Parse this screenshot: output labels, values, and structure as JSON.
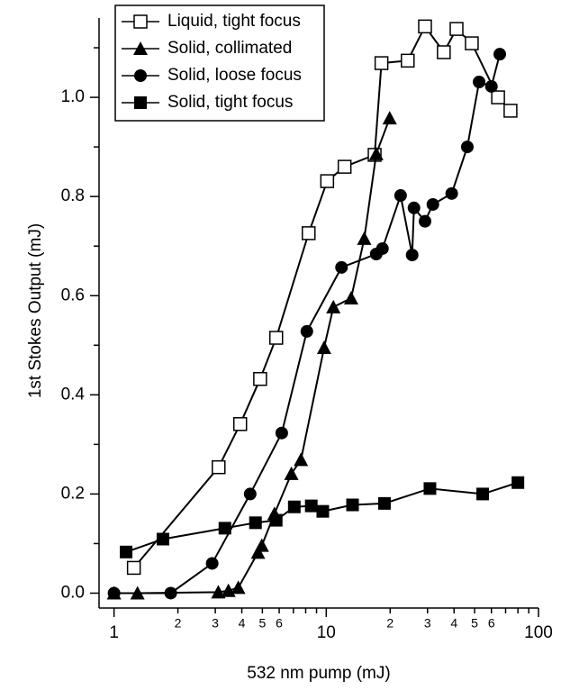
{
  "chart_data": {
    "type": "line",
    "x_scale": "log",
    "color": "#000000",
    "xlabel": "532 nm pump (mJ)",
    "ylabel": "1st Stokes Output (mJ)",
    "xlim": [
      0.85,
      100
    ],
    "ylim": [
      -0.03,
      1.16
    ],
    "xticks": [
      1,
      10,
      100
    ],
    "xminor_ticks": [
      2,
      3,
      4,
      5,
      6,
      {
        "value": 7
      },
      {
        "value": 8
      },
      {
        "value": 9
      },
      {
        "value": 20,
        "label": "2"
      },
      {
        "value": 30,
        "label": "3"
      },
      {
        "value": 40,
        "label": "4"
      },
      {
        "value": 50,
        "label": "5"
      },
      {
        "value": 60,
        "label": "6"
      },
      {
        "value": 70
      },
      {
        "value": 80
      },
      {
        "value": 90
      }
    ],
    "yticks": [
      {
        "value": 0,
        "label": "0.0"
      },
      0.2,
      0.4,
      0.6,
      0.8,
      {
        "value": 1,
        "label": "1.0"
      }
    ],
    "yminor_ticks": [
      0.1,
      0.3,
      0.5,
      0.7,
      0.9,
      1.1
    ],
    "series": [
      {
        "name": "Liquid, tight focus",
        "marker": "open-square",
        "x": [
          1.24,
          3.11,
          3.93,
          4.88,
          5.81,
          8.26,
          10.1,
          12.2,
          16.9,
          18.2,
          24.2,
          29.2,
          35.8,
          41.1,
          48.5,
          64.5,
          73.8
        ],
        "values": [
          0.051,
          0.254,
          0.341,
          0.432,
          0.515,
          0.726,
          0.831,
          0.86,
          0.884,
          1.069,
          1.074,
          1.143,
          1.091,
          1.138,
          1.109,
          1.0,
          0.973
        ]
      },
      {
        "name": "Solid, collimated",
        "marker": "triangle",
        "x": [
          1.0,
          1.29,
          3.1,
          3.46,
          3.85,
          4.77,
          4.97,
          5.7,
          6.85,
          7.6,
          9.77,
          10.8,
          13.1,
          15.1,
          17.2,
          19.9
        ],
        "values": [
          0,
          0,
          0.002,
          0.005,
          0.011,
          0.082,
          0.096,
          0.16,
          0.241,
          0.269,
          0.495,
          0.577,
          0.595,
          0.715,
          0.886,
          0.958
        ]
      },
      {
        "name": "Solid, loose focus",
        "marker": "circle",
        "x": [
          1.0,
          1.85,
          2.9,
          4.38,
          6.17,
          8.1,
          11.8,
          17.2,
          18.4,
          22.4,
          25.4,
          25.9,
          29.2,
          31.8,
          39.0,
          46.2,
          52.5,
          60.0,
          65.7
        ],
        "values": [
          0,
          0,
          0.06,
          0.2,
          0.323,
          0.528,
          0.657,
          0.684,
          0.695,
          0.802,
          0.682,
          0.777,
          0.75,
          0.784,
          0.806,
          0.9,
          1.031,
          1.022,
          1.087
        ]
      },
      {
        "name": "Solid, tight focus",
        "marker": "filled-square",
        "x": [
          1.14,
          1.7,
          3.33,
          4.64,
          5.81,
          7.07,
          8.5,
          9.63,
          13.3,
          18.8,
          30.8,
          54.6,
          80.0
        ],
        "values": [
          0.083,
          0.109,
          0.131,
          0.142,
          0.147,
          0.174,
          0.176,
          0.165,
          0.178,
          0.181,
          0.211,
          0.2,
          0.223
        ]
      }
    ]
  }
}
